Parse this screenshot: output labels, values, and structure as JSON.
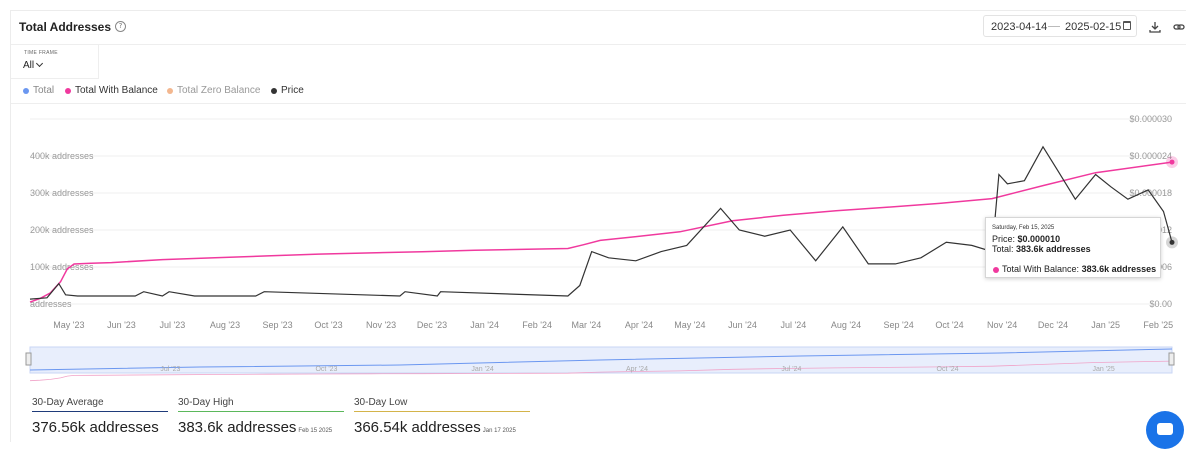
{
  "header": {
    "title": "Total Addresses",
    "date_start": "2023-04-14",
    "date_end": "2025-02-15"
  },
  "timeframe": {
    "label": "TIME FRAME",
    "value": "All"
  },
  "legend": [
    {
      "name": "Total",
      "color": "#6b97f0"
    },
    {
      "name": "Total With Balance",
      "color": "#f0399e"
    },
    {
      "name": "Total Zero Balance",
      "color": "#f3b78f"
    },
    {
      "name": "Price",
      "color": "#333333"
    }
  ],
  "chart_data": {
    "type": "line",
    "x_tick_labels": [
      "May '23",
      "Jun '23",
      "Jul '23",
      "Aug '23",
      "Sep '23",
      "Oct '23",
      "Nov '23",
      "Dec '23",
      "Jan '24",
      "Feb '24",
      "Mar '24",
      "Apr '24",
      "May '24",
      "Jun '24",
      "Jul '24",
      "Aug '24",
      "Sep '24",
      "Oct '24",
      "Nov '24",
      "Dec '24",
      "Jan '25",
      "Feb '25"
    ],
    "nav_tick_labels": [
      "Jul '23",
      "Oct '23",
      "Jan '24",
      "Apr '24",
      "Jul '24",
      "Oct '24",
      "Jan '25"
    ],
    "y_left_ticks": [
      "addresses",
      "100k addresses",
      "200k addresses",
      "300k addresses",
      "400k addresses"
    ],
    "y_left_values": [
      0,
      100000,
      200000,
      300000,
      400000
    ],
    "y_left_range": [
      0,
      500000
    ],
    "y_right_ticks": [
      "$0.00",
      "$0.000006",
      "$0.000012",
      "$0.000018",
      "$0.000024",
      "$0.000030"
    ],
    "y_right_values": [
      0,
      6e-06,
      1.2e-05,
      1.8e-05,
      2.4e-05,
      3e-05
    ],
    "y_right_range": [
      0,
      3e-05
    ],
    "series": [
      {
        "name": "Total With Balance",
        "color": "#f0399e",
        "axis": "left",
        "x": [
          "2023-04-14",
          "2023-04-20",
          "2023-04-26",
          "2023-05-02",
          "2023-05-06",
          "2023-05-10",
          "2023-05-20",
          "2023-06-01",
          "2023-07-01",
          "2023-08-01",
          "2023-09-01",
          "2023-10-01",
          "2023-11-01",
          "2023-12-01",
          "2024-01-01",
          "2024-02-01",
          "2024-02-25",
          "2024-03-05",
          "2024-03-15",
          "2024-04-01",
          "2024-05-01",
          "2024-06-01",
          "2024-07-01",
          "2024-08-01",
          "2024-09-01",
          "2024-10-01",
          "2024-11-01",
          "2024-12-01",
          "2025-01-01",
          "2025-02-15"
        ],
        "values": [
          5000,
          15000,
          30000,
          60000,
          95000,
          108000,
          110000,
          112000,
          120000,
          125000,
          130000,
          135000,
          138000,
          141000,
          145000,
          148000,
          150000,
          160000,
          172000,
          180000,
          195000,
          225000,
          240000,
          252000,
          262000,
          272000,
          285000,
          320000,
          355000,
          383600
        ]
      },
      {
        "name": "Price",
        "color": "#333333",
        "axis": "right",
        "x": [
          "2023-04-14",
          "2023-04-24",
          "2023-05-01",
          "2023-05-05",
          "2023-05-12",
          "2023-06-15",
          "2023-06-20",
          "2023-07-01",
          "2023-07-05",
          "2023-07-20",
          "2023-08-25",
          "2023-08-30",
          "2023-11-18",
          "2023-11-21",
          "2023-12-10",
          "2023-12-12",
          "2024-02-25",
          "2024-03-03",
          "2024-03-10",
          "2024-03-20",
          "2024-04-05",
          "2024-04-20",
          "2024-05-05",
          "2024-05-25",
          "2024-06-05",
          "2024-06-20",
          "2024-07-05",
          "2024-07-20",
          "2024-08-05",
          "2024-08-20",
          "2024-09-05",
          "2024-09-20",
          "2024-10-05",
          "2024-10-20",
          "2024-11-01",
          "2024-11-05",
          "2024-11-10",
          "2024-11-20",
          "2024-12-01",
          "2024-12-10",
          "2024-12-20",
          "2025-01-01",
          "2025-01-10",
          "2025-01-20",
          "2025-02-01",
          "2025-02-10",
          "2025-02-15"
        ],
        "values": [
          8e-07,
          1e-06,
          3.3e-06,
          1.5e-06,
          1.3e-06,
          1.3e-06,
          2e-06,
          1.3e-06,
          2e-06,
          1.3e-06,
          1.3e-06,
          2e-06,
          1.3e-06,
          2e-06,
          1.3e-06,
          2e-06,
          1.3e-06,
          3e-06,
          8.5e-06,
          7.5e-06,
          7e-06,
          8.5e-06,
          9.5e-06,
          1.55e-05,
          1.2e-05,
          1.1e-05,
          1.2e-05,
          7e-06,
          1.25e-05,
          6.5e-06,
          6.5e-06,
          7.5e-06,
          1e-05,
          9.5e-06,
          8.5e-06,
          2.1e-05,
          1.95e-05,
          2e-05,
          2.55e-05,
          2.15e-05,
          1.7e-05,
          2.1e-05,
          1.9e-05,
          1.7e-05,
          1.85e-05,
          1.5e-05,
          1e-05
        ]
      },
      {
        "name": "Total",
        "color": "#6b97f0",
        "axis": "left",
        "x": [],
        "values": []
      },
      {
        "name": "Total Zero Balance",
        "color": "#f3b78f",
        "axis": "left",
        "x": [],
        "values": []
      }
    ],
    "grid": true,
    "legend_position": "top-left"
  },
  "tooltip": {
    "date": "Saturday, Feb 15, 2025",
    "price_label": "Price:",
    "price_value": "$0.000010",
    "total_label": "Total:",
    "total_value": "383.6k addresses",
    "twb_label": "Total With Balance:",
    "twb_value": "383.6k addresses"
  },
  "stats": [
    {
      "label": "30-Day Average",
      "value": "376.56k addresses",
      "date": "",
      "color": "#1f3b7a"
    },
    {
      "label": "30-Day High",
      "value": "383.6k addresses",
      "date": "Feb 15 2025",
      "color": "#5bb85b"
    },
    {
      "label": "30-Day Low",
      "value": "366.54k addresses",
      "date": "Jan 17 2025",
      "color": "#d4b44a"
    }
  ]
}
